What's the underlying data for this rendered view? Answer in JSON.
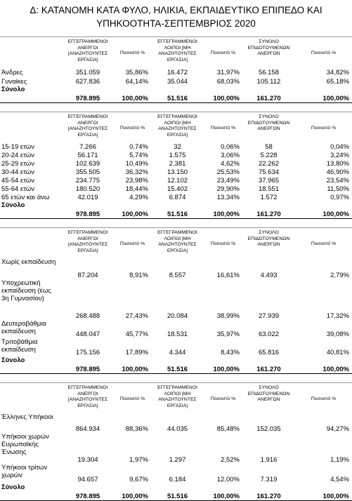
{
  "header": {
    "title_lines": [
      "Δ: ΚΑΤΑΝΟΜΗ ΚΑΤΑ ΦΥΛΟ, ΗΛΙΚΙΑ, ΕΚΠΑΙΔΕΥΤΙΚΟ ΕΠΙΠΕΔΟ ΚΑΙ",
      "ΥΠΗΚΟΟΤΗΤΑ-ΣΕΠΤΕΜΒΡΙΟΣ 2020"
    ]
  },
  "columns": [
    "ΕΓΓΕΓΡΑΜΜΕΝΟΙ ΑΝΕΡΓΟΙ [ΑΝΑΖΗΤΟΥΝΤΕΣ ΕΡΓΑΣΙΑ]",
    "Ποσοστό %",
    "ΕΓΓΕΓΡΑΜΜΕΝΟΙ ΛΟΙΠΟΙ [ΜΗ ΑΝΑΖΗΤΟΥΝΤΕΣ ΕΡΓΑΣΙΑ]",
    "Ποσοστό %",
    "ΣΥΝΟΛΟ ΕΠΙΔΟΤΟΥΜΕΝΩΝ ΑΝΕΡΓΩΝ",
    "Ποσοστό %"
  ],
  "tables": [
    {
      "rows": [
        [
          "Άνδρες",
          "351.059",
          "35,86%",
          "16.472",
          "31,97%",
          "56.158",
          "34,82%"
        ],
        [
          "Γυναίκες",
          "627.836",
          "64,14%",
          "35.044",
          "68,03%",
          "105.112",
          "65,18%"
        ]
      ],
      "total": [
        "Σύνολο",
        "978.895",
        "100,00%",
        "51.516",
        "100,00%",
        "161.270",
        "100,00%"
      ]
    },
    {
      "rows": [
        [
          "15-19 ετών",
          "7.266",
          "0,74%",
          "32",
          "0,06%",
          "58",
          "0,04%"
        ],
        [
          "20-24 ετών",
          "56.171",
          "5,74%",
          "1.575",
          "3,06%",
          "5.228",
          "3,24%"
        ],
        [
          "25-29 ετών",
          "102.639",
          "10,49%",
          "2.381",
          "4,62%",
          "22.262",
          "13,80%"
        ],
        [
          "30-44 ετών",
          "355.505",
          "36,32%",
          "13.150",
          "25,53%",
          "75.634",
          "46,90%"
        ],
        [
          "45-54 ετών",
          "234.775",
          "23,98%",
          "12.102",
          "23,49%",
          "37.965",
          "23,54%"
        ],
        [
          "55-64 ετών",
          "180.520",
          "18,44%",
          "15.402",
          "29,90%",
          "18.551",
          "11,50%"
        ],
        [
          "65 ετών και άνω",
          "42.019",
          "4,29%",
          "6.874",
          "13,34%",
          "1.572",
          "0,97%"
        ]
      ],
      "total": [
        "Σύνολο",
        "978.895",
        "100,00%",
        "51.516",
        "100,00%",
        "161.270",
        "100,00%"
      ]
    },
    {
      "rows": [
        [
          "Χωρίς εκπαίδευση",
          "87.204",
          "8,91%",
          "8.557",
          "16,61%",
          "4.493",
          "2,79%"
        ],
        [
          "Υποχρεωτική εκπαίδευση (έως 3η Γυμνασίου)",
          "268.488",
          "27,43%",
          "20.084",
          "38,99%",
          "27.939",
          "17,32%"
        ],
        [
          "Δευτεροβάθμια εκπαίδευση",
          "448.047",
          "45,77%",
          "18.531",
          "35,97%",
          "63.022",
          "39,08%"
        ],
        [
          "Τριτοβάθμια εκπαίδευση",
          "175.156",
          "17,89%",
          "4.344",
          "8,43%",
          "65.816",
          "40,81%"
        ]
      ],
      "total": [
        "Σύνολο",
        "978.895",
        "100,00%",
        "51.516",
        "100,00%",
        "161.270",
        "100,00%"
      ]
    },
    {
      "rows": [
        [
          "Έλληνες Υπήκοοι",
          "864.934",
          "88,36%",
          "44.035",
          "85,48%",
          "152.035",
          "94,27%"
        ],
        [
          "Υπήκοοι χωρών Ευρωπαϊκής Ένωσης",
          "19.304",
          "1,97%",
          "1.297",
          "2,52%",
          "1.916",
          "1,19%"
        ],
        [
          "Υπήκοοι τρίτων χωρών",
          "94.657",
          "9,67%",
          "6.184",
          "12,00%",
          "7.319",
          "4,54%"
        ]
      ],
      "total": [
        "Σύνολο",
        "978.895",
        "100,00%",
        "51.516",
        "100,00%",
        "161.270",
        "100,00%"
      ]
    }
  ]
}
